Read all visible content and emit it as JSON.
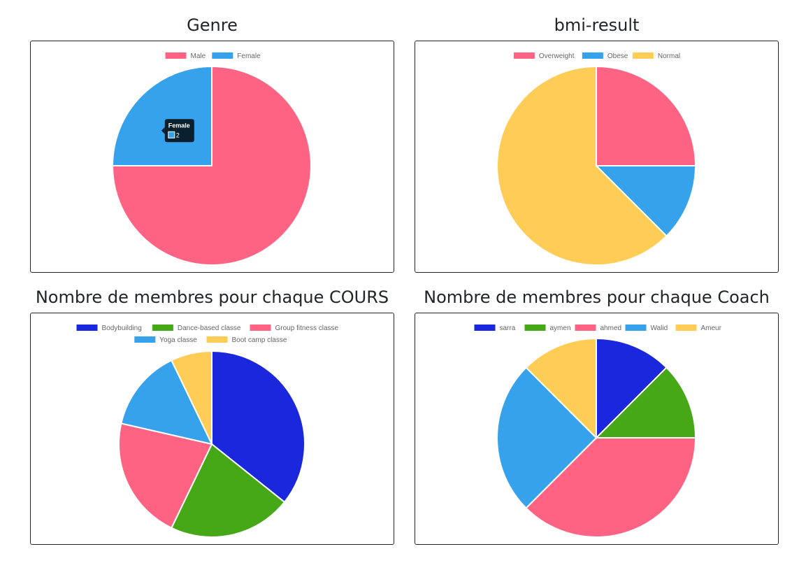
{
  "chart_data": [
    {
      "type": "pie",
      "title": "Genre",
      "categories": [
        "Male",
        "Female"
      ],
      "values": [
        6,
        2
      ],
      "colors": [
        "#ff6384",
        "#36a2eb"
      ],
      "legend": "top",
      "tooltip": {
        "title": "Female",
        "value": "2",
        "color": "#36a2eb"
      }
    },
    {
      "type": "pie",
      "title": "bmi-result",
      "categories": [
        "Overweight",
        "Obese",
        "Normal"
      ],
      "values": [
        2,
        1,
        5
      ],
      "colors": [
        "#ff6384",
        "#36a2eb",
        "#ffcd56"
      ],
      "legend": "top"
    },
    {
      "type": "pie",
      "title": "Nombre de membres pour chaque COURS",
      "categories": [
        "Bodybuilding",
        "Dance-based classe",
        "Group fitness classe",
        "Yoga classe",
        "Boot camp classe"
      ],
      "values": [
        5,
        3,
        3,
        2,
        1
      ],
      "colors": [
        "#1a27dc",
        "#47a817",
        "#ff6384",
        "#36a2eb",
        "#ffcd56"
      ],
      "legend": "top"
    },
    {
      "type": "pie",
      "title": "Nombre de membres pour chaque Coach",
      "categories": [
        "sarra",
        "aymen",
        "ahmed",
        "Walid",
        "Ameur"
      ],
      "values": [
        1,
        1,
        3,
        2,
        1
      ],
      "colors": [
        "#1a27dc",
        "#47a817",
        "#ff6384",
        "#36a2eb",
        "#ffcd56"
      ],
      "legend": "top"
    }
  ]
}
